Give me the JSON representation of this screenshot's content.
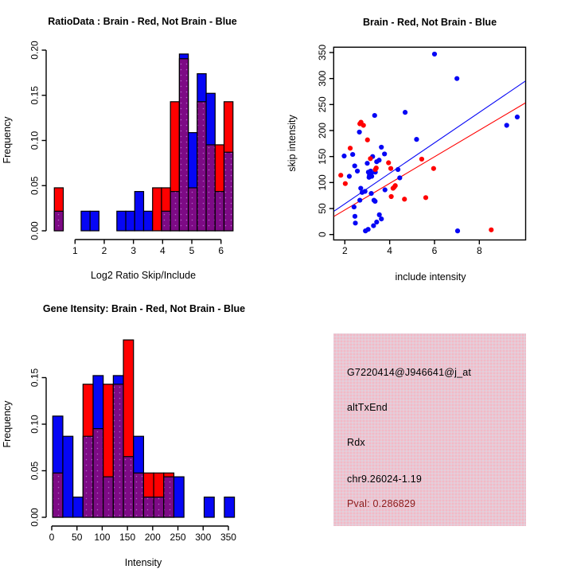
{
  "canvas": {
    "background": "#ffffff"
  },
  "palette": {
    "red": "#ff0000",
    "blue": "#0606f5",
    "purple": "#7d0a85",
    "purple_dot": "#b05fc4",
    "black": "#000000",
    "pink": "#ecc6d0",
    "pink_dot_a": "#f6adc0",
    "pink_dot_b": "#d7d8ea",
    "darkred": "#8b1a1a"
  },
  "chart_data": [
    {
      "id": "ratio_histogram",
      "type": "bar",
      "subtype": "overlaid-histograms",
      "panel": "top-left",
      "title": "RatioData : Brain - Red, Not Brain - Blue",
      "xlabel": "Log2 Ratio Skip/Include",
      "ylabel": "Frequency",
      "x_ticks": [
        1,
        2,
        3,
        4,
        5,
        6
      ],
      "y_ticks": [
        0,
        0.05,
        0.1,
        0.15,
        0.2
      ],
      "y_tick_labels": [
        "0.00",
        "0.05",
        "0.10",
        "0.15",
        "0.20"
      ],
      "xlim": [
        0.29,
        6.41
      ],
      "ylim": [
        0,
        0.2
      ],
      "bins_start": 0.29,
      "bin_width": 0.306,
      "overlap_color": "purple",
      "series": [
        {
          "name": "Brain",
          "color": "red",
          "freq": [
            0.0476,
            0,
            0,
            0,
            0,
            0,
            0,
            0,
            0,
            0,
            0,
            0.0476,
            0.0476,
            0.1429,
            0.1905,
            0.0476,
            0.1429,
            0.0952,
            0.0952,
            0.1429
          ]
        },
        {
          "name": "Not Brain",
          "color": "blue",
          "freq": [
            0.0217,
            0,
            0,
            0.0217,
            0.0217,
            0,
            0,
            0.0217,
            0.0217,
            0.0435,
            0.0217,
            0,
            0.0217,
            0.0435,
            0.1957,
            0.1087,
            0.1739,
            0.1522,
            0.0435,
            0.087
          ]
        }
      ]
    },
    {
      "id": "intensity_scatter",
      "type": "scatter",
      "panel": "top-right",
      "title": "Brain - Red, Not Brain - Blue",
      "xlabel": "include intensity",
      "ylabel": "skip intensity",
      "x_ticks": [
        2,
        4,
        6,
        8
      ],
      "y_ticks": [
        0,
        50,
        100,
        150,
        200,
        250,
        300,
        350
      ],
      "xlim": [
        1.52,
        10.05
      ],
      "ylim": [
        -10.7,
        360.2
      ],
      "box": true,
      "series": [
        {
          "name": "Not Brain",
          "color": "blue",
          "points": [
            [
              6.0,
              347
            ],
            [
              7.0,
              300
            ],
            [
              3.33,
              229
            ],
            [
              4.69,
              235
            ],
            [
              5.2,
              183
            ],
            [
              2.65,
              197
            ],
            [
              3.63,
              168
            ],
            [
              3.77,
              155
            ],
            [
              1.97,
              151
            ],
            [
              2.35,
              154
            ],
            [
              3.53,
              143
            ],
            [
              3.0,
              137
            ],
            [
              3.42,
              140
            ],
            [
              3.24,
              150
            ],
            [
              2.44,
              132
            ],
            [
              2.56,
              122
            ],
            [
              2.2,
              112
            ],
            [
              3.36,
              120
            ],
            [
              3.05,
              120
            ],
            [
              3.1,
              114
            ],
            [
              3.15,
              122
            ],
            [
              3.2,
              112
            ],
            [
              3.18,
              118
            ],
            [
              3.08,
              110
            ],
            [
              4.37,
              125
            ],
            [
              4.45,
              109
            ],
            [
              2.71,
              89
            ],
            [
              2.77,
              81
            ],
            [
              3.18,
              79
            ],
            [
              3.3,
              66
            ],
            [
              3.35,
              64
            ],
            [
              2.67,
              66
            ],
            [
              2.41,
              53
            ],
            [
              2.45,
              35
            ],
            [
              2.47,
              22
            ],
            [
              3.54,
              38
            ],
            [
              3.63,
              30
            ],
            [
              3.42,
              24
            ],
            [
              3.28,
              17
            ],
            [
              3.04,
              10
            ],
            [
              2.92,
              7
            ],
            [
              7.03,
              7
            ],
            [
              9.22,
              210
            ],
            [
              9.69,
              226
            ],
            [
              3.79,
              86
            ],
            [
              2.9,
              83
            ]
          ]
        },
        {
          "name": "Brain",
          "color": "red",
          "points": [
            [
              2.67,
              213
            ],
            [
              2.72,
              216
            ],
            [
              2.83,
              210
            ],
            [
              3.01,
              182
            ],
            [
              2.24,
              166
            ],
            [
              1.82,
              114
            ],
            [
              2.02,
              98
            ],
            [
              3.36,
              125
            ],
            [
              3.14,
              146
            ],
            [
              3.4,
              128
            ],
            [
              3.95,
              138
            ],
            [
              4.05,
              127
            ],
            [
              4.25,
              94
            ],
            [
              4.15,
              89
            ],
            [
              4.07,
              73
            ],
            [
              4.66,
              68
            ],
            [
              5.43,
              145
            ],
            [
              5.61,
              71
            ],
            [
              5.96,
              127
            ],
            [
              8.53,
              9
            ],
            [
              4.2,
              91
            ]
          ]
        }
      ],
      "fit_lines": [
        {
          "color": "blue",
          "x1": 1.52,
          "y1": 45,
          "x2": 10.05,
          "y2": 295
        },
        {
          "color": "red",
          "x1": 1.52,
          "y1": 35,
          "x2": 10.05,
          "y2": 253
        }
      ]
    },
    {
      "id": "gene_intensity_histogram",
      "type": "bar",
      "subtype": "overlaid-histograms",
      "panel": "bottom-left",
      "title": "Gene Itensity: Brain - Red, Not Brain - Blue",
      "xlabel": "Intensity",
      "ylabel": "Frequency",
      "x_ticks": [
        0,
        50,
        100,
        150,
        200,
        250,
        300,
        350
      ],
      "y_ticks": [
        0,
        0.05,
        0.1,
        0.15
      ],
      "y_tick_labels": [
        "0.00",
        "0.05",
        "0.10",
        "0.15"
      ],
      "xlim": [
        2,
        362
      ],
      "ylim": [
        0,
        0.19
      ],
      "bins_start": 2,
      "bin_width": 20,
      "overlap_color": "purple",
      "series": [
        {
          "name": "Brain",
          "color": "red",
          "freq": [
            0.0476,
            0,
            0,
            0.1429,
            0.0952,
            0.1429,
            0.1429,
            0.1905,
            0.0476,
            0.0476,
            0.0476,
            0.0476,
            0,
            0,
            0,
            0,
            0,
            0
          ]
        },
        {
          "name": "Not Brain",
          "color": "blue",
          "freq": [
            0.1087,
            0.087,
            0.0217,
            0.087,
            0.1522,
            0.0435,
            0.1522,
            0.0652,
            0.087,
            0.0217,
            0.0217,
            0.0435,
            0.0435,
            0,
            0,
            0.0217,
            0,
            0.0217
          ]
        }
      ]
    }
  ],
  "info_box": {
    "panel": "bottom-right",
    "background": "pink",
    "lines": [
      {
        "text": "G7220414@J946641@j_at",
        "color": "black"
      },
      {
        "text": "altTxEnd",
        "color": "black"
      },
      {
        "text": "Rdx",
        "color": "black"
      },
      {
        "text": "chr9.26024-1.19",
        "color": "black"
      },
      {
        "text": "Pval: 0.286829",
        "color": "darkred"
      }
    ]
  }
}
